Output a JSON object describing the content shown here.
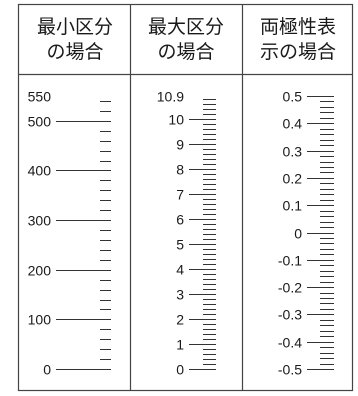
{
  "columns": [
    {
      "key": "min",
      "title_line1": "最小区分",
      "title_line2": "の場合",
      "labels": [
        "550",
        "500",
        "400",
        "300",
        "200",
        "100",
        "0"
      ],
      "max": 550,
      "min": 0,
      "minor_step": 20,
      "major_step": 100
    },
    {
      "key": "max",
      "title_line1": "最大区分",
      "title_line2": "の場合",
      "labels": [
        "10.9",
        "10",
        "9",
        "8",
        "7",
        "6",
        "5",
        "4",
        "3",
        "2",
        "1",
        "0"
      ],
      "max": 10.9,
      "min": 0,
      "minor_step": 0.2,
      "major_step": 1
    },
    {
      "key": "bipolar",
      "title_line1": "両極性表",
      "title_line2": "示の場合",
      "labels": [
        "0.5",
        "0.4",
        "0.3",
        "0.2",
        "0.1",
        "0",
        "-0.1",
        "-0.2",
        "-0.3",
        "-0.4",
        "-0.5"
      ],
      "max": 0.5,
      "min": -0.5,
      "minor_step": 0.02,
      "major_step": 0.1
    }
  ]
}
